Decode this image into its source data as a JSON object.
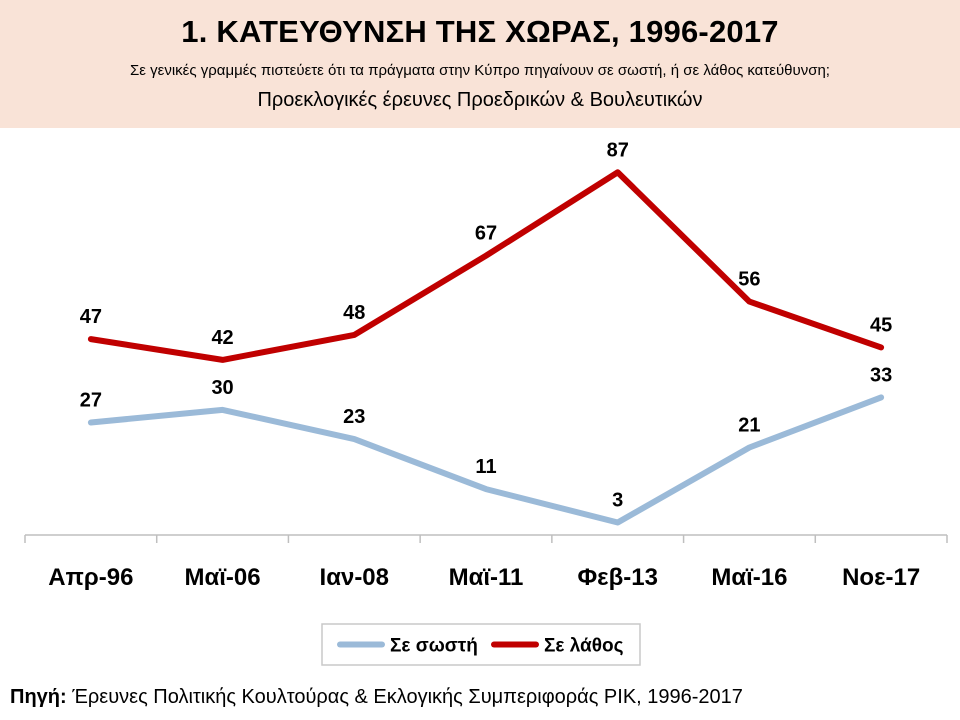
{
  "header": {
    "title": "1. ΚΑΤΕΥΘΥΝΣΗ ΤΗΣ ΧΩΡΑΣ, 1996-2017",
    "subtitle": "Σε γενικές γραμμές πιστεύετε ότι τα πράγματα στην Κύπρο πηγαίνουν σε σωστή, ή σε λάθος κατεύθυνση;",
    "subtitle2": "Προεκλογικές έρευνες Προεδρικών & Βουλευτικών"
  },
  "chart_data": {
    "type": "line",
    "title": "1. ΚΑΤΕΥΘΥΝΣΗ ΤΗΣ ΧΩΡΑΣ, 1996-2017",
    "categories": [
      "Απρ-96",
      "Μαϊ-06",
      "Ιαν-08",
      "Μαϊ-11",
      "Φεβ-13",
      "Μαϊ-16",
      "Νοε-17"
    ],
    "series": [
      {
        "name": "Σε σωστή",
        "color": "#9bbad8",
        "values": [
          27,
          30,
          23,
          11,
          3,
          21,
          33
        ]
      },
      {
        "name": "Σε λάθος",
        "color": "#c00000",
        "values": [
          47,
          42,
          48,
          67,
          87,
          56,
          45
        ]
      }
    ],
    "ylim": [
      0,
      95
    ],
    "xlabel": "",
    "ylabel": "",
    "grid": false,
    "legend": "bottom"
  },
  "source": {
    "label": "Πηγή:",
    "text": "Έρευνες Πολιτικής Κουλτούρας & Εκλογικής Συμπεριφοράς ΡΙΚ, 1996-2017"
  }
}
